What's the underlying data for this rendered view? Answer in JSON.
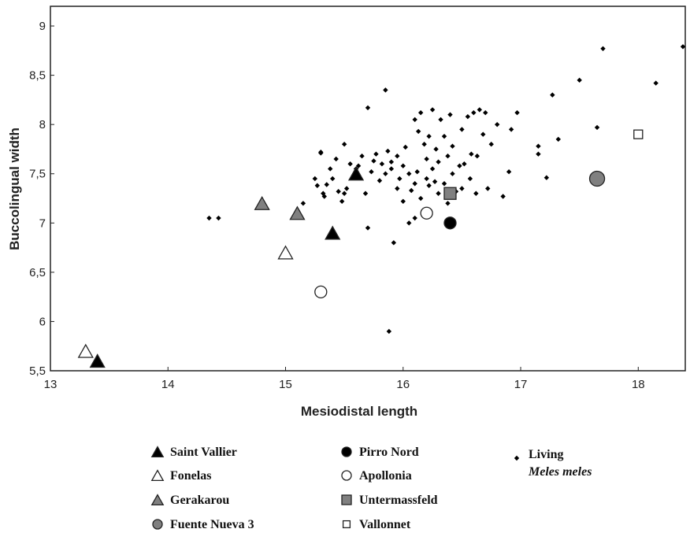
{
  "chart_data": {
    "type": "scatter",
    "xlabel": "Mesiodistal length",
    "ylabel": "Buccolingual width",
    "xlim": [
      13,
      18.4
    ],
    "ylim": [
      5.5,
      9.2
    ],
    "xticks": [
      13,
      14,
      15,
      16,
      17,
      18
    ],
    "xtick_labels": [
      "13",
      "14",
      "15",
      "16",
      "17",
      "18"
    ],
    "yticks": [
      5.5,
      6,
      6.5,
      7,
      7.5,
      8,
      8.5,
      9
    ],
    "ytick_labels": [
      "5,5",
      "6",
      "6,5",
      "7",
      "7,5",
      "8",
      "8,5",
      "9"
    ],
    "grid": false,
    "legend_position": "bottom",
    "series": [
      {
        "name": "Saint Vallier",
        "marker": "triangle",
        "fill": "#000000",
        "points": [
          [
            13.4,
            5.6
          ],
          [
            15.4,
            6.9
          ],
          [
            15.6,
            7.5
          ]
        ]
      },
      {
        "name": "Fonelas",
        "marker": "triangle",
        "fill": "#ffffff",
        "points": [
          [
            13.3,
            5.7
          ],
          [
            15.0,
            6.7
          ]
        ]
      },
      {
        "name": "Gerakarou",
        "marker": "triangle",
        "fill": "#808080",
        "points": [
          [
            14.8,
            7.2
          ],
          [
            15.1,
            7.1
          ]
        ]
      },
      {
        "name": "Fuente Nueva 3",
        "marker": "circle",
        "fill": "#808080",
        "points": [
          [
            17.65,
            7.45
          ]
        ]
      },
      {
        "name": "Pirro Nord",
        "marker": "circle",
        "fill": "#000000",
        "points": [
          [
            16.4,
            7.0
          ]
        ]
      },
      {
        "name": "Apollonia",
        "marker": "circle",
        "fill": "#ffffff",
        "points": [
          [
            15.3,
            6.3
          ],
          [
            16.2,
            7.1
          ]
        ]
      },
      {
        "name": "Untermassfeld",
        "marker": "square",
        "fill": "#808080",
        "points": [
          [
            16.4,
            7.3
          ]
        ]
      },
      {
        "name": "Vallonnet",
        "marker": "square",
        "fill": "#ffffff",
        "points": [
          [
            18.0,
            7.9
          ]
        ]
      },
      {
        "name": "Living Meles meles",
        "marker": "diamond",
        "fill": "#000000",
        "points": [
          [
            14.35,
            7.05
          ],
          [
            14.43,
            7.05
          ],
          [
            15.15,
            7.2
          ],
          [
            15.25,
            7.45
          ],
          [
            15.27,
            7.38
          ],
          [
            15.3,
            7.71
          ],
          [
            15.3,
            7.72
          ],
          [
            15.32,
            7.3
          ],
          [
            15.33,
            7.27
          ],
          [
            15.35,
            7.39
          ],
          [
            15.38,
            7.55
          ],
          [
            15.4,
            7.45
          ],
          [
            15.43,
            7.65
          ],
          [
            15.45,
            7.32
          ],
          [
            15.48,
            7.22
          ],
          [
            15.5,
            7.8
          ],
          [
            15.5,
            7.3
          ],
          [
            15.52,
            7.35
          ],
          [
            15.55,
            7.6
          ],
          [
            15.58,
            7.47
          ],
          [
            15.6,
            7.55
          ],
          [
            15.62,
            7.58
          ],
          [
            15.65,
            7.68
          ],
          [
            15.68,
            7.3
          ],
          [
            15.7,
            6.95
          ],
          [
            15.7,
            8.17
          ],
          [
            15.73,
            7.52
          ],
          [
            15.75,
            7.63
          ],
          [
            15.77,
            7.7
          ],
          [
            15.8,
            7.43
          ],
          [
            15.82,
            7.6
          ],
          [
            15.85,
            8.35
          ],
          [
            15.85,
            7.5
          ],
          [
            15.87,
            7.73
          ],
          [
            15.9,
            7.55
          ],
          [
            15.9,
            7.62
          ],
          [
            15.92,
            6.8
          ],
          [
            15.95,
            7.35
          ],
          [
            15.95,
            7.68
          ],
          [
            15.97,
            7.45
          ],
          [
            15.88,
            5.9
          ],
          [
            16.0,
            7.58
          ],
          [
            16.0,
            7.22
          ],
          [
            16.02,
            7.77
          ],
          [
            16.05,
            7.0
          ],
          [
            16.05,
            7.5
          ],
          [
            16.07,
            7.33
          ],
          [
            16.1,
            7.05
          ],
          [
            16.1,
            7.4
          ],
          [
            16.1,
            8.05
          ],
          [
            16.12,
            7.52
          ],
          [
            16.13,
            7.93
          ],
          [
            16.15,
            7.25
          ],
          [
            16.15,
            8.12
          ],
          [
            16.18,
            7.8
          ],
          [
            16.2,
            7.45
          ],
          [
            16.2,
            7.65
          ],
          [
            16.22,
            7.38
          ],
          [
            16.22,
            7.88
          ],
          [
            16.25,
            7.55
          ],
          [
            16.25,
            8.15
          ],
          [
            16.27,
            7.42
          ],
          [
            16.28,
            7.75
          ],
          [
            16.3,
            7.3
          ],
          [
            16.3,
            7.62
          ],
          [
            16.32,
            8.05
          ],
          [
            16.35,
            7.4
          ],
          [
            16.35,
            7.88
          ],
          [
            16.38,
            7.2
          ],
          [
            16.38,
            7.68
          ],
          [
            16.4,
            8.1
          ],
          [
            16.42,
            7.5
          ],
          [
            16.42,
            7.78
          ],
          [
            16.45,
            7.32
          ],
          [
            16.48,
            7.58
          ],
          [
            16.5,
            7.95
          ],
          [
            16.5,
            7.35
          ],
          [
            16.52,
            7.6
          ],
          [
            16.55,
            8.08
          ],
          [
            16.57,
            7.45
          ],
          [
            16.58,
            7.7
          ],
          [
            16.6,
            8.12
          ],
          [
            16.62,
            7.3
          ],
          [
            16.63,
            7.68
          ],
          [
            16.65,
            8.15
          ],
          [
            16.68,
            7.9
          ],
          [
            16.7,
            8.12
          ],
          [
            16.72,
            7.35
          ],
          [
            16.75,
            7.8
          ],
          [
            16.8,
            8.0
          ],
          [
            16.85,
            7.27
          ],
          [
            16.9,
            7.52
          ],
          [
            16.92,
            7.95
          ],
          [
            16.97,
            8.12
          ],
          [
            17.15,
            7.7
          ],
          [
            17.15,
            7.78
          ],
          [
            17.22,
            7.46
          ],
          [
            17.27,
            8.3
          ],
          [
            17.32,
            7.85
          ],
          [
            17.5,
            8.45
          ],
          [
            17.65,
            7.97
          ],
          [
            17.7,
            8.77
          ],
          [
            18.15,
            8.42
          ],
          [
            18.38,
            8.79
          ]
        ]
      }
    ]
  },
  "legend": {
    "items": [
      {
        "label": "Saint Vallier",
        "marker": "triangle",
        "fill": "#000000"
      },
      {
        "label": "Fonelas",
        "marker": "triangle",
        "fill": "#ffffff"
      },
      {
        "label": "Gerakarou",
        "marker": "triangle",
        "fill": "#808080"
      },
      {
        "label": "Fuente Nueva 3",
        "marker": "circle",
        "fill": "#808080"
      },
      {
        "label": "Pirro Nord",
        "marker": "circle",
        "fill": "#000000"
      },
      {
        "label": "Apollonia",
        "marker": "circle",
        "fill": "#ffffff"
      },
      {
        "label": "Untermassfeld",
        "marker": "square",
        "fill": "#808080"
      },
      {
        "label": "Vallonnet",
        "marker": "square",
        "fill": "#ffffff"
      }
    ],
    "living_line1": "Living",
    "living_line2": "Meles meles"
  }
}
